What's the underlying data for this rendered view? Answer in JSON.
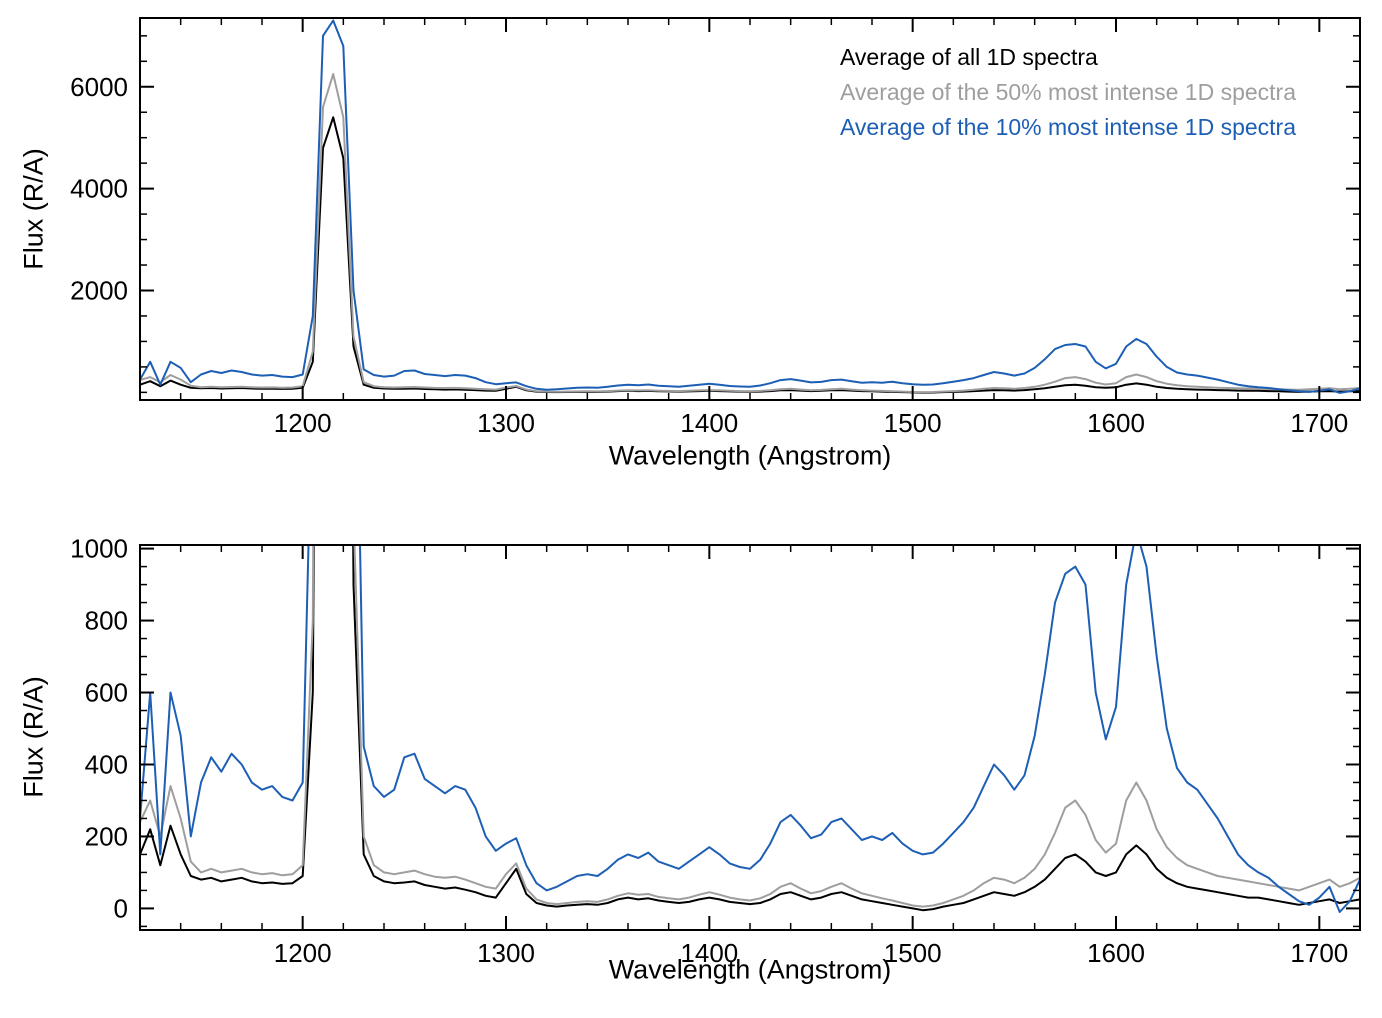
{
  "figure": {
    "background": "#ffffff"
  },
  "chart_data": {
    "type": "line",
    "title": "",
    "xlabel": "Wavelength (Angstrom)",
    "ylabel": "Flux (R/A)",
    "xlim": [
      1120,
      1720
    ],
    "xticks": [
      1200,
      1300,
      1400,
      1500,
      1600,
      1700
    ],
    "xminor": 20,
    "legend_position": "top-right-inside-first-panel",
    "grid": false,
    "x": [
      1120,
      1125,
      1130,
      1135,
      1140,
      1145,
      1150,
      1155,
      1160,
      1165,
      1170,
      1175,
      1180,
      1185,
      1190,
      1195,
      1200,
      1205,
      1210,
      1215,
      1220,
      1225,
      1230,
      1235,
      1240,
      1245,
      1250,
      1255,
      1260,
      1265,
      1270,
      1275,
      1280,
      1285,
      1290,
      1295,
      1300,
      1305,
      1310,
      1315,
      1320,
      1325,
      1330,
      1335,
      1340,
      1345,
      1350,
      1355,
      1360,
      1365,
      1370,
      1375,
      1380,
      1385,
      1390,
      1395,
      1400,
      1405,
      1410,
      1415,
      1420,
      1425,
      1430,
      1435,
      1440,
      1445,
      1450,
      1455,
      1460,
      1465,
      1470,
      1475,
      1480,
      1485,
      1490,
      1495,
      1500,
      1505,
      1510,
      1515,
      1520,
      1525,
      1530,
      1535,
      1540,
      1545,
      1550,
      1555,
      1560,
      1565,
      1570,
      1575,
      1580,
      1585,
      1590,
      1595,
      1600,
      1605,
      1610,
      1615,
      1620,
      1625,
      1630,
      1635,
      1640,
      1645,
      1650,
      1655,
      1660,
      1665,
      1670,
      1675,
      1680,
      1685,
      1690,
      1695,
      1700,
      1705,
      1710,
      1715,
      1720
    ],
    "series": [
      {
        "name": "Average of all 1D spectra",
        "color": "#000000",
        "values": [
          150,
          220,
          120,
          230,
          150,
          90,
          80,
          85,
          75,
          80,
          85,
          75,
          70,
          72,
          68,
          70,
          90,
          600,
          4800,
          5400,
          4600,
          900,
          150,
          90,
          75,
          70,
          72,
          75,
          65,
          60,
          55,
          58,
          52,
          45,
          35,
          30,
          70,
          110,
          40,
          15,
          8,
          5,
          8,
          10,
          12,
          10,
          15,
          25,
          30,
          25,
          28,
          22,
          18,
          15,
          18,
          25,
          30,
          25,
          18,
          15,
          12,
          15,
          25,
          40,
          45,
          35,
          25,
          30,
          40,
          45,
          35,
          25,
          20,
          15,
          10,
          5,
          0,
          -5,
          -2,
          5,
          10,
          15,
          25,
          35,
          45,
          40,
          35,
          45,
          60,
          80,
          110,
          140,
          150,
          130,
          100,
          90,
          100,
          150,
          175,
          150,
          110,
          85,
          70,
          60,
          55,
          50,
          45,
          40,
          35,
          30,
          30,
          25,
          20,
          15,
          10,
          15,
          20,
          25,
          15,
          20,
          25
        ]
      },
      {
        "name": "Average of the 50% most intense 1D spectra",
        "color": "#9e9e9e",
        "values": [
          240,
          300,
          200,
          340,
          250,
          130,
          100,
          110,
          100,
          105,
          110,
          100,
          95,
          98,
          92,
          95,
          120,
          800,
          5600,
          6250,
          5400,
          1100,
          200,
          120,
          100,
          95,
          100,
          105,
          95,
          88,
          85,
          88,
          80,
          70,
          60,
          55,
          95,
          125,
          55,
          25,
          15,
          12,
          15,
          18,
          20,
          18,
          25,
          35,
          42,
          38,
          40,
          32,
          28,
          25,
          30,
          38,
          45,
          38,
          30,
          25,
          22,
          28,
          40,
          60,
          70,
          55,
          42,
          48,
          60,
          70,
          55,
          42,
          35,
          28,
          22,
          15,
          8,
          5,
          8,
          15,
          25,
          35,
          50,
          70,
          85,
          80,
          70,
          85,
          110,
          150,
          210,
          280,
          300,
          260,
          190,
          155,
          180,
          300,
          350,
          300,
          220,
          170,
          140,
          120,
          110,
          100,
          90,
          85,
          80,
          75,
          70,
          65,
          60,
          55,
          50,
          60,
          70,
          80,
          60,
          70,
          85
        ]
      },
      {
        "name": "Average of the 10% most intense 1D spectra",
        "color": "#1d5fb5",
        "values": [
          250,
          600,
          150,
          600,
          480,
          200,
          350,
          420,
          380,
          430,
          400,
          350,
          330,
          340,
          310,
          300,
          350,
          1500,
          7000,
          7300,
          6800,
          2000,
          450,
          340,
          310,
          330,
          420,
          430,
          360,
          340,
          320,
          340,
          330,
          280,
          200,
          160,
          180,
          195,
          120,
          70,
          50,
          60,
          75,
          90,
          95,
          90,
          110,
          135,
          150,
          140,
          155,
          130,
          120,
          110,
          130,
          150,
          170,
          150,
          125,
          115,
          110,
          135,
          180,
          240,
          260,
          230,
          195,
          205,
          240,
          250,
          220,
          190,
          200,
          190,
          210,
          180,
          160,
          150,
          155,
          180,
          210,
          240,
          280,
          340,
          400,
          370,
          330,
          370,
          480,
          650,
          850,
          930,
          950,
          900,
          600,
          470,
          560,
          900,
          1050,
          950,
          700,
          500,
          390,
          350,
          330,
          290,
          250,
          200,
          150,
          120,
          100,
          85,
          60,
          40,
          20,
          10,
          30,
          60,
          -10,
          20,
          80
        ]
      }
    ],
    "panels": [
      {
        "name": "full-range-panel",
        "ylabel": "Flux (R/A)",
        "xlabel": "Wavelength (Angstrom)",
        "ylim": [
          -150,
          7350
        ],
        "yticks": [
          2000,
          4000,
          6000
        ],
        "yminor": 500,
        "show_legend": true
      },
      {
        "name": "zoomed-panel",
        "ylabel": "Flux (R/A)",
        "xlabel": "Wavelength (Angstrom)",
        "ylim": [
          -60,
          1010
        ],
        "yticks": [
          0,
          200,
          400,
          600,
          800,
          1000
        ],
        "yminor": 50,
        "show_legend": false
      }
    ]
  }
}
